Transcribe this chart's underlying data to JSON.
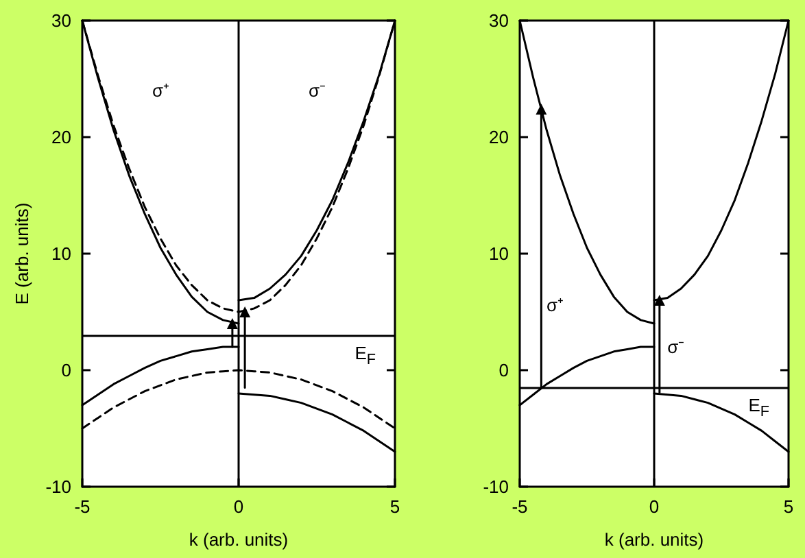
{
  "chart_data": [
    {
      "type": "line",
      "xlabel": "k (arb. units)",
      "ylabel": "E (arb. units)",
      "xlim": [
        -5,
        5
      ],
      "ylim": [
        -10,
        30
      ],
      "xticks": [
        -5,
        0,
        5
      ],
      "yticks": [
        -10,
        0,
        10,
        20,
        30
      ],
      "marker": "none",
      "series": [
        {
          "color": "#000000",
          "line_style": "solid",
          "x": [
            -5,
            -4.5,
            -4,
            -3.5,
            -3,
            -2.5,
            -2,
            -1.5,
            -1,
            -0.5,
            0
          ],
          "values": [
            30,
            25.1,
            20.6,
            16.7,
            13.4,
            10.5,
            8.2,
            6.3,
            5.0,
            4.3,
            4
          ]
        },
        {
          "color": "#000000",
          "line_style": "solid",
          "x": [
            0,
            0.5,
            1,
            1.5,
            2,
            2.5,
            3,
            3.5,
            4,
            4.5,
            5
          ],
          "values": [
            6,
            6.2,
            7.0,
            8.2,
            9.8,
            12,
            14.6,
            17.8,
            21.4,
            25.4,
            30
          ]
        },
        {
          "color": "#000000",
          "line_style": "dashed",
          "x": [
            -5,
            -4.5,
            -4,
            -3.5,
            -3,
            -2.5,
            -2,
            -1.5,
            -1,
            -0.5,
            0,
            0.5,
            1,
            1.5,
            2,
            2.5,
            3,
            3.5,
            4,
            4.5,
            5
          ],
          "values": [
            30,
            25.3,
            21,
            17.3,
            14,
            11.3,
            9,
            7.3,
            6,
            5.3,
            5,
            5.3,
            6,
            7.3,
            9,
            11.3,
            14,
            17.3,
            21,
            25.3,
            30
          ]
        },
        {
          "color": "#000000",
          "line_style": "solid",
          "x": [
            -5,
            -4.5,
            -4,
            -3.5,
            -3,
            -2.5,
            -2,
            -1.5,
            -1,
            -0.5,
            0
          ],
          "values": [
            -3,
            -2.1,
            -1.2,
            -0.5,
            0.2,
            0.8,
            1.2,
            1.6,
            1.8,
            2,
            2
          ]
        },
        {
          "color": "#000000",
          "line_style": "dashed",
          "x": [
            -5,
            -4.5,
            -4,
            -3.5,
            -3,
            -2.5,
            -2,
            -1.5,
            -1,
            -0.5,
            0,
            0.5,
            1,
            1.5,
            2,
            2.5,
            3,
            3.5,
            4,
            4.5,
            5
          ],
          "values": [
            -5,
            -4.1,
            -3.2,
            -2.5,
            -1.8,
            -1.3,
            -0.8,
            -0.5,
            -0.2,
            -0.1,
            0,
            -0.1,
            -0.2,
            -0.5,
            -0.8,
            -1.3,
            -1.8,
            -2.5,
            -3.2,
            -4.1,
            -5
          ]
        },
        {
          "color": "#000000",
          "line_style": "solid",
          "x": [
            0,
            0.5,
            1,
            1.5,
            2,
            2.5,
            3,
            3.5,
            4,
            4.5,
            5
          ],
          "values": [
            -2,
            -2.1,
            -2.2,
            -2.5,
            -2.8,
            -3.3,
            -3.8,
            -4.5,
            -5.2,
            -6.1,
            -7
          ]
        },
        {
          "color": "#000000",
          "line_style": "solid",
          "marker": "triangle",
          "x": [
            -0.2,
            -0.2
          ],
          "values": [
            2,
            4
          ]
        },
        {
          "color": "#000000",
          "line_style": "solid",
          "marker": "triangle",
          "x": [
            0.2,
            0.2
          ],
          "values": [
            -1.5,
            5
          ]
        }
      ],
      "ref_lines": [
        {
          "axis": "y",
          "value": 3,
          "label": "E$_{F}$"
        },
        {
          "axis": "x",
          "value": 0,
          "label": null
        }
      ],
      "annotations": [
        "σ⁺",
        "σ⁻"
      ]
    },
    {
      "type": "line",
      "xlabel": "k (arb. units)",
      "xlim": [
        -5,
        5
      ],
      "ylim": [
        -10,
        30
      ],
      "xticks": [
        -5,
        0,
        5
      ],
      "yticks": [
        -10,
        0,
        10,
        20,
        30
      ],
      "marker": "none",
      "series": [
        {
          "color": "#000000",
          "line_style": "solid",
          "x": [
            -5,
            -4.5,
            -4,
            -3.5,
            -3,
            -2.5,
            -2,
            -1.5,
            -1,
            -0.5,
            0
          ],
          "values": [
            30,
            25.1,
            20.6,
            16.7,
            13.4,
            10.5,
            8.2,
            6.3,
            5.0,
            4.3,
            4
          ]
        },
        {
          "color": "#000000",
          "line_style": "solid",
          "x": [
            0,
            0.5,
            1,
            1.5,
            2,
            2.5,
            3,
            3.5,
            4,
            4.5,
            5
          ],
          "values": [
            6,
            6.2,
            7.0,
            8.2,
            9.8,
            12,
            14.6,
            17.8,
            21.4,
            25.4,
            30
          ]
        },
        {
          "color": "#000000",
          "line_style": "solid",
          "x": [
            -5,
            -4.5,
            -4,
            -3.5,
            -3,
            -2.5,
            -2,
            -1.5,
            -1,
            -0.5,
            0
          ],
          "values": [
            -3,
            -2.1,
            -1.2,
            -0.5,
            0.2,
            0.8,
            1.2,
            1.6,
            1.8,
            2,
            2
          ]
        },
        {
          "color": "#000000",
          "line_style": "solid",
          "x": [
            0,
            0.5,
            1,
            1.5,
            2,
            2.5,
            3,
            3.5,
            4,
            4.5,
            5
          ],
          "values": [
            -2,
            -2.1,
            -2.2,
            -2.5,
            -2.8,
            -3.3,
            -3.8,
            -4.5,
            -5.2,
            -6.1,
            -7
          ]
        },
        {
          "color": "#000000",
          "line_style": "solid",
          "marker": "triangle",
          "x": [
            -4.2,
            -4.2
          ],
          "values": [
            -1.5,
            22.4
          ]
        },
        {
          "color": "#000000",
          "line_style": "solid",
          "marker": "triangle",
          "x": [
            0.2,
            0.2
          ],
          "values": [
            -1.9,
            6
          ]
        }
      ],
      "ref_lines": [
        {
          "axis": "y",
          "value": -1.5,
          "label": "E$_{F}$"
        },
        {
          "axis": "x",
          "value": 0,
          "label": null
        }
      ],
      "annotations": [
        "σ⁺",
        "σ⁻"
      ]
    }
  ]
}
